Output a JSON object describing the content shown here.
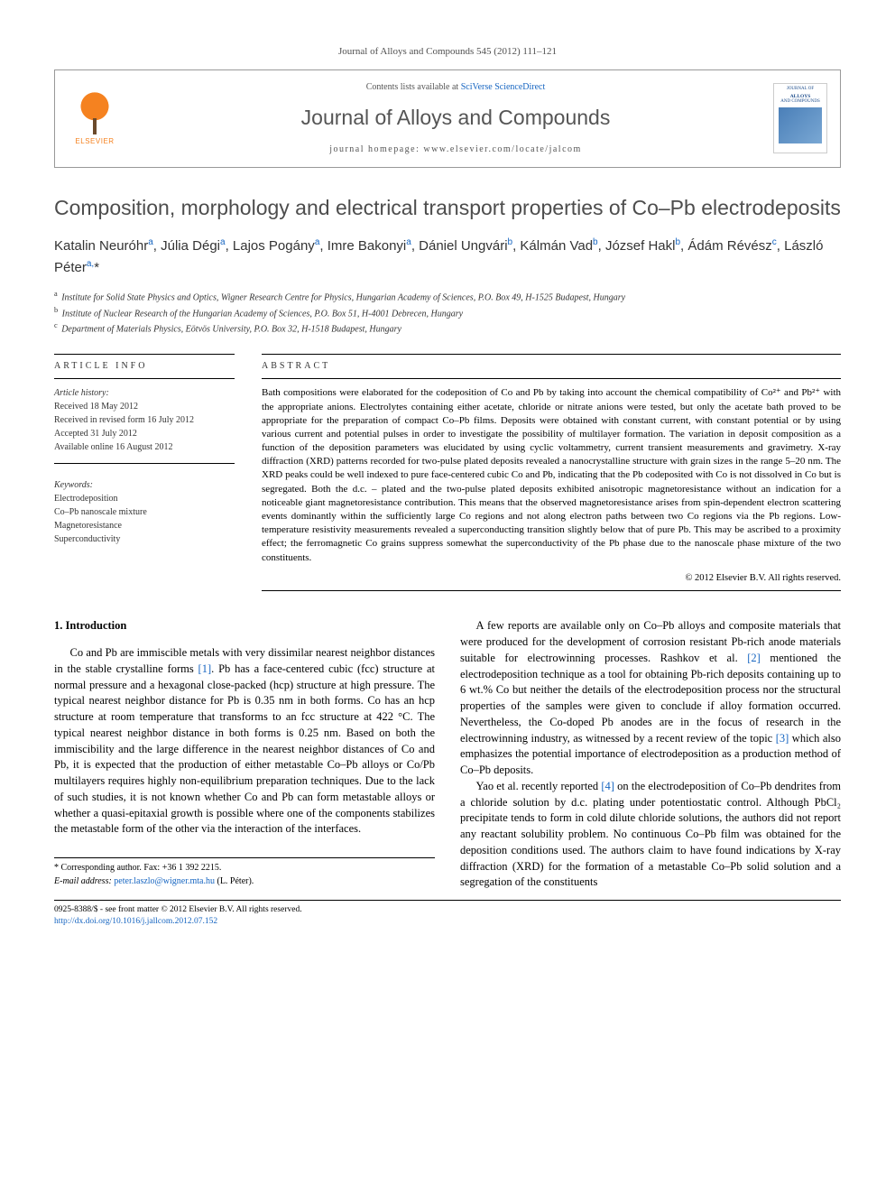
{
  "journal_ref": "Journal of Alloys and Compounds 545 (2012) 111–121",
  "header": {
    "publisher": "ELSEVIER",
    "contents_prefix": "Contents lists available at ",
    "contents_link": "SciVerse ScienceDirect",
    "journal_title": "Journal of Alloys and Compounds",
    "homepage_label": "journal homepage: www.elsevier.com/locate/jalcom",
    "cover_title_1": "JOURNAL OF",
    "cover_title_2": "ALLOYS",
    "cover_title_3": "AND COMPOUNDS"
  },
  "article": {
    "title": "Composition, morphology and electrical transport properties of Co–Pb electrodeposits",
    "authors_html": "Katalin Neuróhr<sup>a</sup>, Júlia Dégi<sup>a</sup>, Lajos Pogány<sup>a</sup>, Imre Bakonyi<sup>a</sup>, Dániel Ungvári<sup>b</sup>, Kálmán Vad<sup>b</sup>, József Hakl<sup>b</sup>, Ádám Révész<sup>c</sup>, László Péter<sup>a,</sup>*",
    "affiliations": [
      {
        "sup": "a",
        "text": "Institute for Solid State Physics and Optics, Wigner Research Centre for Physics, Hungarian Academy of Sciences, P.O. Box 49, H-1525 Budapest, Hungary"
      },
      {
        "sup": "b",
        "text": "Institute of Nuclear Research of the Hungarian Academy of Sciences, P.O. Box 51, H-4001 Debrecen, Hungary"
      },
      {
        "sup": "c",
        "text": "Department of Materials Physics, Eötvös University, P.O. Box 32, H-1518 Budapest, Hungary"
      }
    ]
  },
  "info": {
    "label": "ARTICLE INFO",
    "history_label": "Article history:",
    "history": [
      "Received 18 May 2012",
      "Received in revised form 16 July 2012",
      "Accepted 31 July 2012",
      "Available online 16 August 2012"
    ],
    "keywords_label": "Keywords:",
    "keywords": [
      "Electrodeposition",
      "Co–Pb nanoscale mixture",
      "Magnetoresistance",
      "Superconductivity"
    ]
  },
  "abstract": {
    "label": "ABSTRACT",
    "text": "Bath compositions were elaborated for the codeposition of Co and Pb by taking into account the chemical compatibility of Co²⁺ and Pb²⁺ with the appropriate anions. Electrolytes containing either acetate, chloride or nitrate anions were tested, but only the acetate bath proved to be appropriate for the preparation of compact Co–Pb films. Deposits were obtained with constant current, with constant potential or by using various current and potential pulses in order to investigate the possibility of multilayer formation. The variation in deposit composition as a function of the deposition parameters was elucidated by using cyclic voltammetry, current transient measurements and gravimetry. X-ray diffraction (XRD) patterns recorded for two-pulse plated deposits revealed a nanocrystalline structure with grain sizes in the range 5–20 nm. The XRD peaks could be well indexed to pure face-centered cubic Co and Pb, indicating that the Pb codeposited with Co is not dissolved in Co but is segregated. Both the d.c. – plated and the two-pulse plated deposits exhibited anisotropic magnetoresistance without an indication for a noticeable giant magnetoresistance contribution. This means that the observed magnetoresistance arises from spin-dependent electron scattering events dominantly within the sufficiently large Co regions and not along electron paths between two Co regions via the Pb regions. Low-temperature resistivity measurements revealed a superconducting transition slightly below that of pure Pb. This may be ascribed to a proximity effect; the ferromagnetic Co grains suppress somewhat the superconductivity of the Pb phase due to the nanoscale phase mixture of the two constituents.",
    "copyright": "© 2012 Elsevier B.V. All rights reserved."
  },
  "body": {
    "heading": "1. Introduction",
    "col1_p1": "Co and Pb are immiscible metals with very dissimilar nearest neighbor distances in the stable crystalline forms [1]. Pb has a face-centered cubic (fcc) structure at normal pressure and a hexagonal close-packed (hcp) structure at high pressure. The typical nearest neighbor distance for Pb is 0.35 nm in both forms. Co has an hcp structure at room temperature that transforms to an fcc structure at 422 °C. The typical nearest neighbor distance in both forms is 0.25 nm. Based on both the immiscibility and the large difference in the nearest neighbor distances of Co and Pb, it is expected that the production of either metastable Co–Pb alloys or Co/Pb multilayers requires highly non-equilibrium preparation techniques. Due to the lack of such studies, it is not known whether Co and Pb can form metastable alloys or whether a quasi-epitaxial growth is possible where one of the components stabilizes the metastable form of the other via the interaction of the interfaces.",
    "col2_p1": "A few reports are available only on Co–Pb alloys and composite materials that were produced for the development of corrosion resistant Pb-rich anode materials suitable for electrowinning processes. Rashkov et al. [2] mentioned the electrodeposition technique as a tool for obtaining Pb-rich deposits containing up to 6 wt.% Co but neither the details of the electrodeposition process nor the structural properties of the samples were given to conclude if alloy formation occurred. Nevertheless, the Co-doped Pb anodes are in the focus of research in the electrowinning industry, as witnessed by a recent review of the topic [3] which also emphasizes the potential importance of electrodeposition as a production method of Co–Pb deposits.",
    "col2_p2": "Yao et al. recently reported [4] on the electrodeposition of Co–Pb dendrites from a chloride solution by d.c. plating under potentiostatic control. Although PbCl₂ precipitate tends to form in cold dilute chloride solutions, the authors did not report any reactant solubility problem. No continuous Co–Pb film was obtained for the deposition conditions used. The authors claim to have found indications by X-ray diffraction (XRD) for the formation of a metastable Co–Pb solid solution and a segregation of the constituents"
  },
  "footer": {
    "corr_label": "* Corresponding author. Fax: +36 1 392 2215.",
    "email_label": "E-mail address: ",
    "email": "peter.laszlo@wigner.mta.hu",
    "email_suffix": " (L. Péter).",
    "issn_line": "0925-8388/$ - see front matter © 2012 Elsevier B.V. All rights reserved.",
    "doi": "http://dx.doi.org/10.1016/j.jallcom.2012.07.152"
  },
  "colors": {
    "link": "#1665c1",
    "elsevier_orange": "#f58220",
    "title_gray": "#4d4d4d",
    "text": "#000000"
  }
}
